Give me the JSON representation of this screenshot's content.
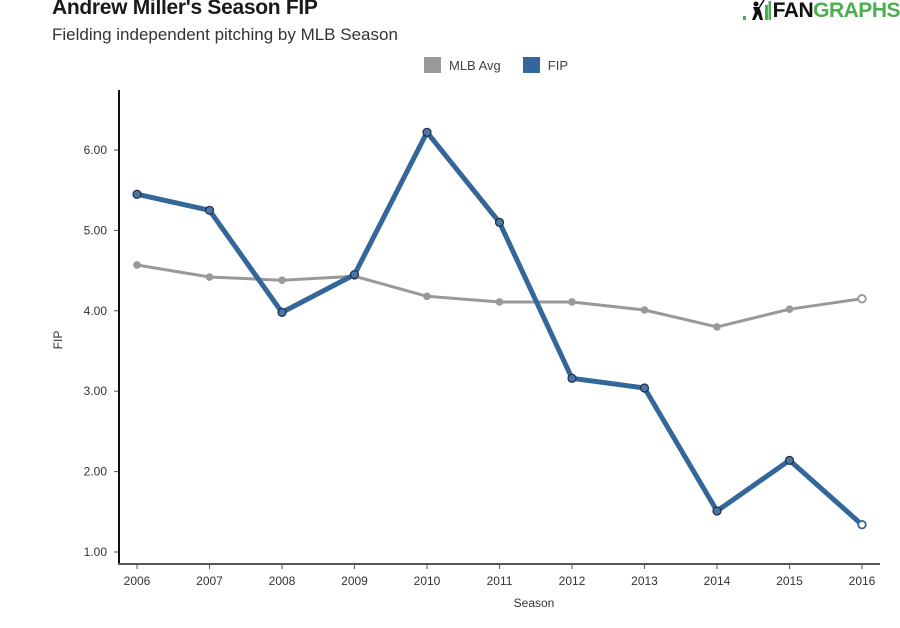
{
  "logo": {
    "part1": "FAN",
    "part2": "GRAPHS",
    "icon": "batter-silhouette-icon"
  },
  "colors": {
    "fip": "#336699",
    "fip_marker": "#4a76a8",
    "mlb": "#999999",
    "axis": "#111111",
    "logo_green": "#4caf50"
  },
  "chart_data": {
    "type": "line",
    "title": "Andrew Miller's Season FIP",
    "subtitle": "Fielding independent pitching by MLB Season",
    "xlabel": "Season",
    "ylabel": "FIP",
    "x": [
      2006,
      2007,
      2008,
      2009,
      2010,
      2011,
      2012,
      2013,
      2014,
      2015,
      2016
    ],
    "x_tick_labels": [
      "2006",
      "2007",
      "2008",
      "2009",
      "2010",
      "2011",
      "2012",
      "2013",
      "2014",
      "2015",
      "2016"
    ],
    "y_ticks": [
      1,
      2,
      3,
      4,
      5,
      6
    ],
    "y_tick_labels": [
      "1.00",
      "2.00",
      "3.00",
      "4.00",
      "5.00",
      "6.00"
    ],
    "ylim": [
      0.85,
      6.75
    ],
    "xlim": [
      2005.75,
      2016.25
    ],
    "grid": false,
    "legend_position": "top-center",
    "series": [
      {
        "name": "MLB Avg",
        "color": "#999999",
        "values": [
          4.57,
          4.42,
          4.38,
          4.43,
          4.18,
          4.11,
          4.11,
          4.01,
          3.8,
          4.02,
          4.15
        ]
      },
      {
        "name": "FIP",
        "color": "#336699",
        "values": [
          5.45,
          5.25,
          3.98,
          4.45,
          6.22,
          5.1,
          3.16,
          3.04,
          1.51,
          2.14,
          1.34
        ]
      }
    ]
  }
}
